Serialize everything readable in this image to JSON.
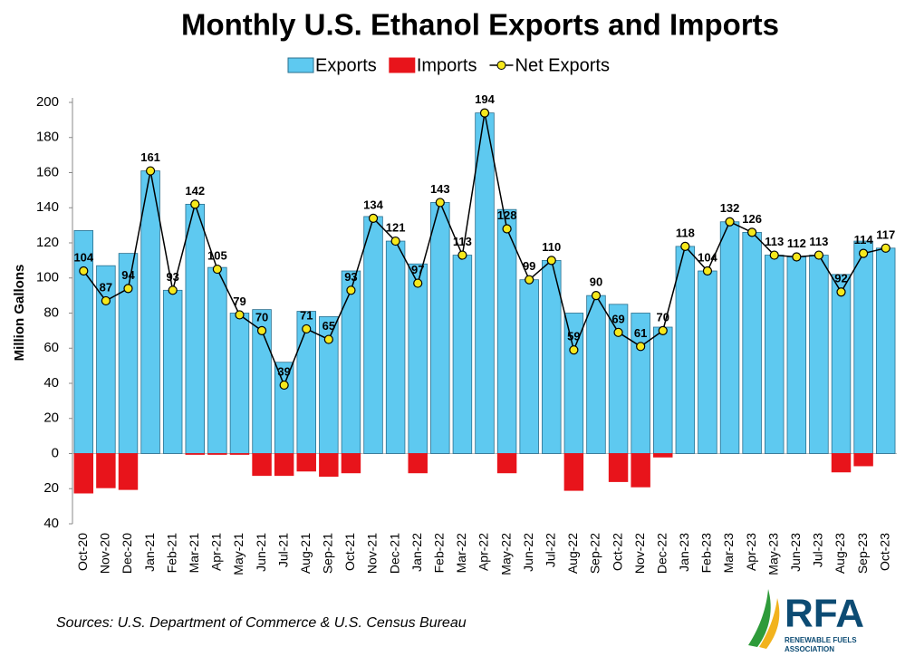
{
  "chart_data": {
    "type": "bar-line",
    "title": "Monthly U.S. Ethanol Exports and Imports",
    "y_label": "Million Gallons",
    "source": "Sources: U.S. Department of Commerce & U.S. Census Bureau",
    "logo": {
      "name": "RFA",
      "tagline": [
        "RENEWABLE FUELS",
        "ASSOCIATION"
      ]
    },
    "categories": [
      "Oct-20",
      "Nov-20",
      "Dec-20",
      "Jan-21",
      "Feb-21",
      "Mar-21",
      "Apr-21",
      "May-21",
      "Jun-21",
      "Jul-21",
      "Aug-21",
      "Sep-21",
      "Oct-21",
      "Nov-21",
      "Dec-21",
      "Jan-22",
      "Feb-22",
      "Mar-22",
      "Apr-22",
      "May-22",
      "Jun-22",
      "Jul-22",
      "Aug-22",
      "Sep-22",
      "Oct-22",
      "Nov-22",
      "Dec-22",
      "Jan-23",
      "Feb-23",
      "Mar-23",
      "Apr-23",
      "May-23",
      "Jun-23",
      "Jul-23",
      "Aug-23",
      "Sep-23",
      "Oct-23"
    ],
    "series": [
      {
        "name": "Exports",
        "kind": "bar",
        "color": "#5ec9f0",
        "values": [
          127,
          107,
          114,
          161,
          93,
          142,
          106,
          80,
          82,
          52,
          81,
          78,
          104,
          135,
          121,
          108,
          143,
          113,
          194,
          139,
          99,
          110,
          80,
          90,
          85,
          80,
          72,
          118,
          104,
          132,
          126,
          113,
          112,
          113,
          102,
          121,
          117
        ]
      },
      {
        "name": "Imports",
        "kind": "bar",
        "color": "#e8141b",
        "values": [
          -22.5,
          -19.5,
          -20.5,
          0,
          0,
          -0.5,
          -0.5,
          -0.5,
          -12.5,
          -12.5,
          -10,
          -13,
          -11,
          0,
          0,
          -11,
          0,
          0,
          0,
          -11,
          0,
          0,
          -21,
          0,
          -16,
          -19,
          -2,
          0,
          0,
          0,
          0,
          0,
          0,
          0,
          -10.5,
          -7,
          0
        ]
      },
      {
        "name": "Net Exports",
        "kind": "line",
        "color": "#000000",
        "marker_color": "#f5e81c",
        "values": [
          104,
          87,
          94,
          161,
          93,
          142,
          105,
          79,
          70,
          39,
          71,
          65,
          93,
          134,
          121,
          97,
          143,
          113,
          194,
          128,
          99,
          110,
          59,
          90,
          69,
          61,
          70,
          118,
          104,
          132,
          126,
          113,
          112,
          113,
          92,
          114,
          117
        ]
      }
    ],
    "ylim": [
      -40,
      200
    ],
    "yticks": [
      {
        "value": -40,
        "label": "40"
      },
      {
        "value": -20,
        "label": "20"
      },
      0,
      20,
      40,
      60,
      80,
      100,
      120,
      140,
      160,
      180,
      200
    ]
  }
}
